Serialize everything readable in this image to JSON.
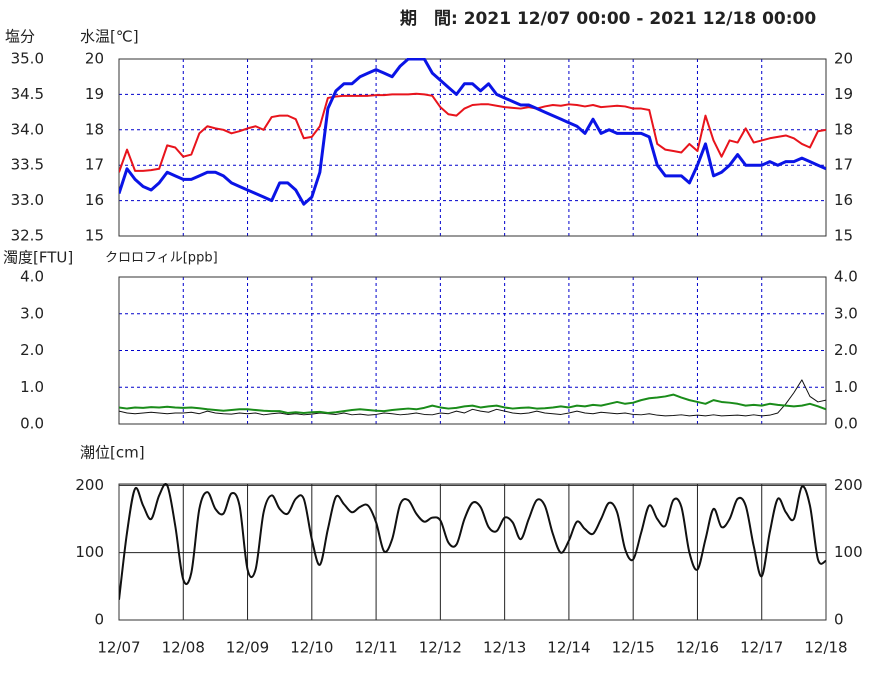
{
  "title": "期　間: 2021 12/07 00:00 - 2021 12/18 00:00",
  "chart_data": [
    {
      "type": "line",
      "ylabel": "塩分",
      "ylabel_color": "#e00000",
      "y2label": "水温[℃]",
      "y2label_color": "#1a1ab4",
      "xlim": [
        "12/07 00:00",
        "12/18 00:00"
      ],
      "xticks": [
        "12/07",
        "12/08",
        "12/09",
        "12/10",
        "12/11",
        "12/12",
        "12/13",
        "12/14",
        "12/15",
        "12/16",
        "12/17",
        "12/18"
      ],
      "ylim": [
        32.5,
        35.0
      ],
      "yticks": [
        32.5,
        {
          "value": 33.0,
          "label": "33.0"
        },
        33.5,
        {
          "value": 34.0,
          "label": "34.0"
        },
        34.5,
        {
          "value": 35.0,
          "label": "35.0"
        }
      ],
      "y2lim": [
        15,
        20
      ],
      "y2ticks": [
        15,
        16,
        17,
        18,
        19,
        20
      ],
      "grid": true,
      "grid_style": "dashed",
      "grid_color": "#0000cc",
      "x": [
        "12/07 00:00",
        "12/07 03:00",
        "12/07 06:00",
        "12/07 09:00",
        "12/07 12:00",
        "12/07 15:00",
        "12/07 18:00",
        "12/07 21:00",
        "12/08 00:00",
        "12/08 03:00",
        "12/08 06:00",
        "12/08 09:00",
        "12/08 12:00",
        "12/08 15:00",
        "12/08 18:00",
        "12/08 21:00",
        "12/09 00:00",
        "12/09 03:00",
        "12/09 06:00",
        "12/09 09:00",
        "12/09 12:00",
        "12/09 15:00",
        "12/09 18:00",
        "12/09 21:00",
        "12/10 00:00",
        "12/10 03:00",
        "12/10 06:00",
        "12/10 09:00",
        "12/10 12:00",
        "12/10 15:00",
        "12/10 18:00",
        "12/10 21:00",
        "12/11 00:00",
        "12/11 03:00",
        "12/11 06:00",
        "12/11 09:00",
        "12/11 12:00",
        "12/11 15:00",
        "12/11 18:00",
        "12/11 21:00",
        "12/12 00:00",
        "12/12 03:00",
        "12/12 06:00",
        "12/12 09:00",
        "12/12 12:00",
        "12/12 15:00",
        "12/12 18:00",
        "12/12 21:00",
        "12/13 00:00",
        "12/13 03:00",
        "12/13 06:00",
        "12/13 09:00",
        "12/13 12:00",
        "12/13 15:00",
        "12/13 18:00",
        "12/13 21:00",
        "12/14 00:00",
        "12/14 03:00",
        "12/14 06:00",
        "12/14 09:00",
        "12/14 12:00",
        "12/14 15:00",
        "12/14 18:00",
        "12/14 21:00",
        "12/15 00:00",
        "12/15 03:00",
        "12/15 06:00",
        "12/15 09:00",
        "12/15 12:00",
        "12/15 15:00",
        "12/15 18:00",
        "12/15 21:00",
        "12/16 00:00",
        "12/16 03:00",
        "12/16 06:00",
        "12/16 09:00",
        "12/16 12:00",
        "12/16 15:00",
        "12/16 18:00",
        "12/16 21:00",
        "12/17 00:00",
        "12/17 03:00",
        "12/17 06:00",
        "12/17 09:00",
        "12/17 12:00",
        "12/17 15:00",
        "12/17 18:00",
        "12/17 21:00",
        "12/18 00:00"
      ],
      "series": [
        {
          "name": "塩分",
          "color": "#e8141c",
          "width": 2,
          "values": [
            33.4,
            33.72,
            33.42,
            33.42,
            33.43,
            33.45,
            33.78,
            33.75,
            33.62,
            33.65,
            33.95,
            34.05,
            34.02,
            34.0,
            33.95,
            33.98,
            34.02,
            34.05,
            34.0,
            34.18,
            34.2,
            34.2,
            34.15,
            33.88,
            33.9,
            34.05,
            34.45,
            34.47,
            34.48,
            34.48,
            34.48,
            34.48,
            34.49,
            34.49,
            34.5,
            34.5,
            34.5,
            34.51,
            34.5,
            34.48,
            34.32,
            34.22,
            34.2,
            34.3,
            34.35,
            34.36,
            34.36,
            34.34,
            34.32,
            34.31,
            34.3,
            34.32,
            34.3,
            34.33,
            34.35,
            34.34,
            34.36,
            34.35,
            34.33,
            34.35,
            34.32,
            34.33,
            34.34,
            34.33,
            34.3,
            34.3,
            34.28,
            33.8,
            33.72,
            33.7,
            33.68,
            33.8,
            33.7,
            34.2,
            33.85,
            33.62,
            33.85,
            33.82,
            34.02,
            33.82,
            33.85,
            33.88,
            33.9,
            33.92,
            33.88,
            33.8,
            33.75,
            33.98,
            34.0
          ]
        },
        {
          "name": "水温[℃]",
          "color": "#0a14e6",
          "width": 3,
          "axis": "y2",
          "values": [
            16.2,
            16.9,
            16.6,
            16.4,
            16.3,
            16.5,
            16.8,
            16.7,
            16.6,
            16.6,
            16.7,
            16.8,
            16.8,
            16.7,
            16.5,
            16.4,
            16.3,
            16.2,
            16.1,
            16.0,
            16.5,
            16.5,
            16.3,
            15.9,
            16.1,
            16.8,
            18.6,
            19.1,
            19.3,
            19.3,
            19.5,
            19.6,
            19.7,
            19.6,
            19.5,
            19.8,
            20.0,
            20.0,
            20.0,
            19.6,
            19.4,
            19.2,
            19.0,
            19.3,
            19.3,
            19.1,
            19.3,
            19.0,
            18.9,
            18.8,
            18.7,
            18.7,
            18.6,
            18.5,
            18.4,
            18.3,
            18.2,
            18.1,
            17.9,
            18.3,
            17.9,
            18.0,
            17.9,
            17.9,
            17.9,
            17.9,
            17.8,
            17.0,
            16.7,
            16.7,
            16.7,
            16.5,
            17.0,
            17.6,
            16.7,
            16.8,
            17.0,
            17.3,
            17.0,
            17.0,
            17.0,
            17.1,
            17.0,
            17.1,
            17.1,
            17.2,
            17.1,
            17.0,
            16.9
          ]
        }
      ]
    },
    {
      "type": "line",
      "ylabel": "濁度[FTU]",
      "ylabel_color": "#222222",
      "y2label": "クロロフィル[ppb]",
      "y2label_color": "#1a8c1a",
      "xlim": [
        "12/07 00:00",
        "12/18 00:00"
      ],
      "xticks": [
        "12/07",
        "12/08",
        "12/09",
        "12/10",
        "12/11",
        "12/12",
        "12/13",
        "12/14",
        "12/15",
        "12/16",
        "12/17",
        "12/18"
      ],
      "ylim": [
        0,
        4
      ],
      "yticks": [
        {
          "value": 0,
          "label": "0.0"
        },
        {
          "value": 1,
          "label": "1.0"
        },
        {
          "value": 2,
          "label": "2.0"
        },
        {
          "value": 3,
          "label": "3.0"
        },
        {
          "value": 4,
          "label": "4.0"
        }
      ],
      "grid": true,
      "grid_style": "dashed",
      "grid_color": "#0000cc",
      "x": [
        "12/07 00:00",
        "12/07 03:00",
        "12/07 06:00",
        "12/07 09:00",
        "12/07 12:00",
        "12/07 15:00",
        "12/07 18:00",
        "12/07 21:00",
        "12/08 00:00",
        "12/08 03:00",
        "12/08 06:00",
        "12/08 09:00",
        "12/08 12:00",
        "12/08 15:00",
        "12/08 18:00",
        "12/08 21:00",
        "12/09 00:00",
        "12/09 03:00",
        "12/09 06:00",
        "12/09 09:00",
        "12/09 12:00",
        "12/09 15:00",
        "12/09 18:00",
        "12/09 21:00",
        "12/10 00:00",
        "12/10 03:00",
        "12/10 06:00",
        "12/10 09:00",
        "12/10 12:00",
        "12/10 15:00",
        "12/10 18:00",
        "12/10 21:00",
        "12/11 00:00",
        "12/11 03:00",
        "12/11 06:00",
        "12/11 09:00",
        "12/11 12:00",
        "12/11 15:00",
        "12/11 18:00",
        "12/11 21:00",
        "12/12 00:00",
        "12/12 03:00",
        "12/12 06:00",
        "12/12 09:00",
        "12/12 12:00",
        "12/12 15:00",
        "12/12 18:00",
        "12/12 21:00",
        "12/13 00:00",
        "12/13 03:00",
        "12/13 06:00",
        "12/13 09:00",
        "12/13 12:00",
        "12/13 15:00",
        "12/13 18:00",
        "12/13 21:00",
        "12/14 00:00",
        "12/14 03:00",
        "12/14 06:00",
        "12/14 09:00",
        "12/14 12:00",
        "12/14 15:00",
        "12/14 18:00",
        "12/14 21:00",
        "12/15 00:00",
        "12/15 03:00",
        "12/15 06:00",
        "12/15 09:00",
        "12/15 12:00",
        "12/15 15:00",
        "12/15 18:00",
        "12/15 21:00",
        "12/16 00:00",
        "12/16 03:00",
        "12/16 06:00",
        "12/16 09:00",
        "12/16 12:00",
        "12/16 15:00",
        "12/16 18:00",
        "12/16 21:00",
        "12/17 00:00",
        "12/17 03:00",
        "12/17 06:00",
        "12/17 09:00",
        "12/17 12:00",
        "12/17 15:00",
        "12/17 18:00",
        "12/17 21:00",
        "12/18 00:00"
      ],
      "series": [
        {
          "name": "濁度[FTU]",
          "color": "#111111",
          "width": 1,
          "values": [
            0.35,
            0.3,
            0.28,
            0.3,
            0.32,
            0.3,
            0.28,
            0.3,
            0.3,
            0.32,
            0.28,
            0.35,
            0.3,
            0.28,
            0.27,
            0.3,
            0.28,
            0.3,
            0.25,
            0.28,
            0.3,
            0.26,
            0.28,
            0.25,
            0.27,
            0.3,
            0.28,
            0.26,
            0.3,
            0.25,
            0.27,
            0.24,
            0.26,
            0.3,
            0.28,
            0.25,
            0.27,
            0.3,
            0.26,
            0.25,
            0.3,
            0.28,
            0.35,
            0.3,
            0.4,
            0.35,
            0.32,
            0.4,
            0.35,
            0.3,
            0.28,
            0.3,
            0.35,
            0.3,
            0.28,
            0.26,
            0.3,
            0.35,
            0.3,
            0.28,
            0.32,
            0.3,
            0.28,
            0.3,
            0.26,
            0.25,
            0.28,
            0.24,
            0.22,
            0.23,
            0.25,
            0.22,
            0.24,
            0.22,
            0.25,
            0.22,
            0.23,
            0.24,
            0.22,
            0.25,
            0.22,
            0.24,
            0.3,
            0.55,
            0.85,
            1.2,
            0.75,
            0.6,
            0.65
          ]
        },
        {
          "name": "クロロフィル[ppb]",
          "color": "#1a8c1a",
          "width": 2,
          "values": [
            0.45,
            0.42,
            0.45,
            0.44,
            0.46,
            0.45,
            0.47,
            0.45,
            0.44,
            0.45,
            0.43,
            0.4,
            0.38,
            0.36,
            0.38,
            0.4,
            0.4,
            0.38,
            0.36,
            0.35,
            0.35,
            0.3,
            0.32,
            0.3,
            0.32,
            0.33,
            0.3,
            0.32,
            0.35,
            0.38,
            0.4,
            0.38,
            0.36,
            0.35,
            0.38,
            0.4,
            0.42,
            0.4,
            0.44,
            0.5,
            0.45,
            0.42,
            0.44,
            0.48,
            0.5,
            0.45,
            0.48,
            0.5,
            0.45,
            0.42,
            0.44,
            0.45,
            0.42,
            0.43,
            0.45,
            0.48,
            0.45,
            0.5,
            0.48,
            0.52,
            0.5,
            0.55,
            0.6,
            0.55,
            0.58,
            0.65,
            0.7,
            0.72,
            0.75,
            0.8,
            0.72,
            0.65,
            0.6,
            0.55,
            0.65,
            0.6,
            0.58,
            0.55,
            0.5,
            0.52,
            0.5,
            0.55,
            0.52,
            0.5,
            0.48,
            0.5,
            0.55,
            0.48,
            0.4
          ]
        }
      ]
    },
    {
      "type": "line",
      "ylabel": "潮位[cm]",
      "ylabel_color": "#222222",
      "xlim": [
        "12/07 00:00",
        "12/18 00:00"
      ],
      "xticks": [
        "12/07",
        "12/08",
        "12/09",
        "12/10",
        "12/11",
        "12/12",
        "12/13",
        "12/14",
        "12/15",
        "12/16",
        "12/17",
        "12/18"
      ],
      "ylim": [
        0,
        202
      ],
      "yticks": [
        0,
        100,
        200
      ],
      "grid": true,
      "grid_style": "solid",
      "grid_color": "#222222",
      "smooth": true,
      "x": [
        "12/07 00:00",
        "12/07 03:00",
        "12/07 06:00",
        "12/07 09:00",
        "12/07 12:00",
        "12/07 15:00",
        "12/07 18:00",
        "12/07 21:00",
        "12/08 00:00",
        "12/08 03:00",
        "12/08 06:00",
        "12/08 09:00",
        "12/08 12:00",
        "12/08 15:00",
        "12/08 18:00",
        "12/08 21:00",
        "12/09 00:00",
        "12/09 03:00",
        "12/09 06:00",
        "12/09 09:00",
        "12/09 12:00",
        "12/09 15:00",
        "12/09 18:00",
        "12/09 21:00",
        "12/10 00:00",
        "12/10 03:00",
        "12/10 06:00",
        "12/10 09:00",
        "12/10 12:00",
        "12/10 15:00",
        "12/10 18:00",
        "12/10 21:00",
        "12/11 00:00",
        "12/11 03:00",
        "12/11 06:00",
        "12/11 09:00",
        "12/11 12:00",
        "12/11 15:00",
        "12/11 18:00",
        "12/11 21:00",
        "12/12 00:00",
        "12/12 03:00",
        "12/12 06:00",
        "12/12 09:00",
        "12/12 12:00",
        "12/12 15:00",
        "12/12 18:00",
        "12/12 21:00",
        "12/13 00:00",
        "12/13 03:00",
        "12/13 06:00",
        "12/13 09:00",
        "12/13 12:00",
        "12/13 15:00",
        "12/13 18:00",
        "12/13 21:00",
        "12/14 00:00",
        "12/14 03:00",
        "12/14 06:00",
        "12/14 09:00",
        "12/14 12:00",
        "12/14 15:00",
        "12/14 18:00",
        "12/14 21:00",
        "12/15 00:00",
        "12/15 03:00",
        "12/15 06:00",
        "12/15 09:00",
        "12/15 12:00",
        "12/15 15:00",
        "12/15 18:00",
        "12/15 21:00",
        "12/16 00:00",
        "12/16 03:00",
        "12/16 06:00",
        "12/16 09:00",
        "12/16 12:00",
        "12/16 15:00",
        "12/16 18:00",
        "12/16 21:00",
        "12/17 00:00",
        "12/17 03:00",
        "12/17 06:00",
        "12/17 09:00",
        "12/17 12:00",
        "12/17 15:00",
        "12/17 18:00",
        "12/17 21:00",
        "12/18 00:00"
      ],
      "series": [
        {
          "name": "潮位[cm]",
          "color": "#111111",
          "width": 2,
          "values": [
            30,
            130,
            195,
            170,
            150,
            185,
            200,
            140,
            60,
            70,
            165,
            190,
            165,
            158,
            188,
            170,
            75,
            75,
            160,
            185,
            165,
            158,
            180,
            180,
            120,
            82,
            135,
            183,
            172,
            160,
            168,
            170,
            145,
            102,
            120,
            172,
            178,
            158,
            146,
            152,
            148,
            115,
            112,
            150,
            174,
            168,
            138,
            132,
            152,
            145,
            120,
            150,
            178,
            170,
            128,
            100,
            118,
            146,
            135,
            128,
            150,
            174,
            160,
            105,
            90,
            130,
            170,
            150,
            140,
            178,
            168,
            100,
            75,
            120,
            165,
            138,
            150,
            180,
            170,
            110,
            65,
            130,
            180,
            160,
            150,
            198,
            170,
            90,
            88
          ]
        }
      ]
    }
  ]
}
